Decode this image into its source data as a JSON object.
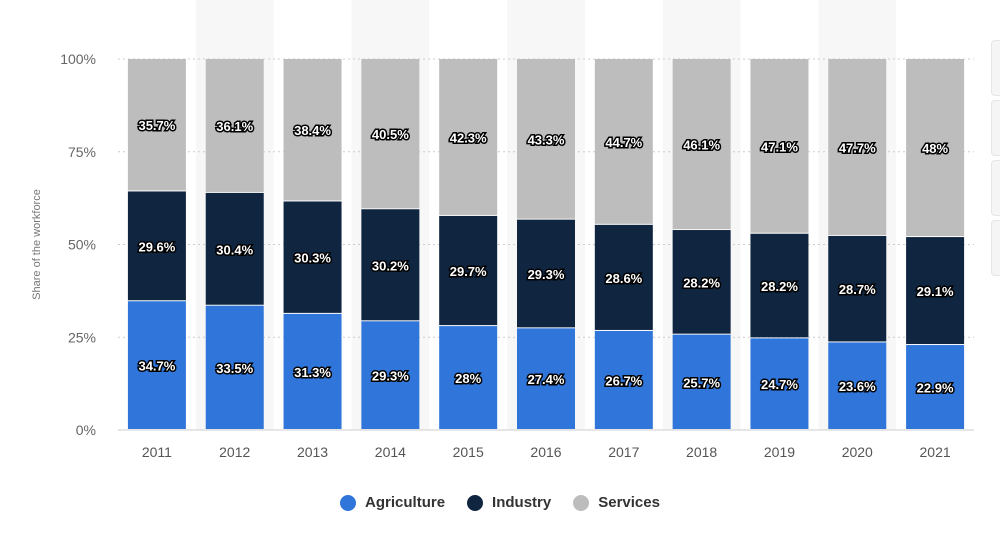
{
  "chart_data": {
    "type": "bar",
    "stacked": true,
    "categories": [
      "2011",
      "2012",
      "2013",
      "2014",
      "2015",
      "2016",
      "2017",
      "2018",
      "2019",
      "2020",
      "2021"
    ],
    "series": [
      {
        "name": "Agriculture",
        "color": "#2f75da",
        "values": [
          34.7,
          33.5,
          31.3,
          29.3,
          28,
          27.4,
          26.7,
          25.7,
          24.7,
          23.6,
          22.9
        ],
        "labels": [
          "34.7%",
          "33.5%",
          "31.3%",
          "29.3%",
          "28%",
          "27.4%",
          "26.7%",
          "25.7%",
          "24.7%",
          "23.6%",
          "22.9%"
        ]
      },
      {
        "name": "Industry",
        "color": "#0f2540",
        "values": [
          29.6,
          30.4,
          30.3,
          30.2,
          29.7,
          29.3,
          28.6,
          28.2,
          28.2,
          28.7,
          29.1
        ],
        "labels": [
          "29.6%",
          "30.4%",
          "30.3%",
          "30.2%",
          "29.7%",
          "29.3%",
          "28.6%",
          "28.2%",
          "28.2%",
          "28.7%",
          "29.1%"
        ]
      },
      {
        "name": "Services",
        "color": "#bdbdbd",
        "values": [
          35.7,
          36.1,
          38.4,
          40.5,
          42.3,
          43.3,
          44.7,
          46.1,
          47.1,
          47.7,
          48
        ],
        "labels": [
          "35.7%",
          "36.1%",
          "38.4%",
          "40.5%",
          "42.3%",
          "43.3%",
          "44.7%",
          "46.1%",
          "47.1%",
          "47.7%",
          "48%"
        ]
      }
    ],
    "ylabel": "Share of the workforce",
    "xlabel": "",
    "ylim": [
      0,
      100
    ],
    "yticks": [
      0,
      25,
      50,
      75,
      100
    ],
    "ytick_labels": [
      "0%",
      "25%",
      "50%",
      "75%",
      "100%"
    ],
    "grid": true,
    "legend_position": "bottom-center"
  }
}
